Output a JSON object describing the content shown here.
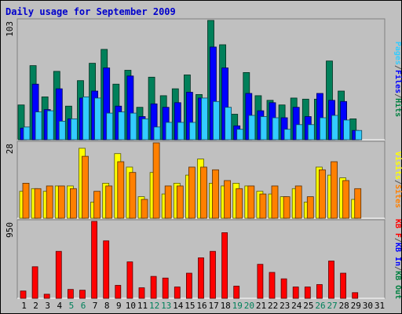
{
  "title": "Daily usage for September 2009",
  "chart_data": [
    {
      "type": "bar",
      "title": "Daily usage for September 2009",
      "max_label": "103",
      "ylim": [
        0,
        103
      ],
      "categories": [
        "1",
        "2",
        "3",
        "4",
        "5",
        "6",
        "7",
        "8",
        "9",
        "10",
        "11",
        "12",
        "13",
        "14",
        "15",
        "16",
        "17",
        "18",
        "19",
        "20",
        "21",
        "22",
        "23",
        "24",
        "25",
        "26",
        "27",
        "28",
        "29",
        "30",
        "31"
      ],
      "right_labels": [
        {
          "text": "Pages",
          "color": "#33ccff"
        },
        {
          "text": "/",
          "color": "#555555"
        },
        {
          "text": "Files",
          "color": "#0000ff"
        },
        {
          "text": "/",
          "color": "#555555"
        },
        {
          "text": "Hits",
          "color": "#008040"
        }
      ],
      "series": [
        {
          "name": "Hits",
          "color": "#00805a",
          "values": [
            30,
            64,
            37,
            59,
            29,
            51,
            66,
            78,
            48,
            60,
            28,
            54,
            38,
            44,
            56,
            39,
            103,
            82,
            22,
            58,
            38,
            34,
            30,
            36,
            35,
            35,
            68,
            42,
            18,
            0,
            0
          ]
        },
        {
          "name": "Files",
          "color": "#0000ff",
          "values": [
            10,
            48,
            26,
            44,
            18,
            36,
            42,
            62,
            29,
            55,
            20,
            31,
            28,
            32,
            41,
            36,
            80,
            62,
            12,
            40,
            25,
            32,
            19,
            28,
            20,
            40,
            34,
            33,
            8,
            0,
            0
          ]
        },
        {
          "name": "Pages",
          "color": "#33ccff",
          "values": [
            11,
            24,
            25,
            16,
            18,
            37,
            36,
            23,
            24,
            23,
            18,
            11,
            15,
            15,
            15,
            36,
            33,
            28,
            9,
            21,
            20,
            19,
            9,
            13,
            13,
            19,
            21,
            17,
            8,
            0,
            0
          ]
        }
      ]
    },
    {
      "type": "bar",
      "max_label": "28",
      "ylim": [
        0,
        28
      ],
      "categories": [
        "1",
        "2",
        "3",
        "4",
        "5",
        "6",
        "7",
        "8",
        "9",
        "10",
        "11",
        "12",
        "13",
        "14",
        "15",
        "16",
        "17",
        "18",
        "19",
        "20",
        "21",
        "22",
        "23",
        "24",
        "25",
        "26",
        "27",
        "28",
        "29",
        "30",
        "31"
      ],
      "right_labels": [
        {
          "text": "Visits",
          "color": "#ffff00"
        },
        {
          "text": "/",
          "color": "#555555"
        },
        {
          "text": "Sites",
          "color": "#ff8000"
        }
      ],
      "series": [
        {
          "name": "Visits",
          "color": "#ffff00",
          "values": [
            10,
            11,
            10,
            12,
            12,
            26,
            6,
            13,
            24,
            19,
            8,
            17,
            9,
            13,
            16,
            22,
            13,
            12,
            13,
            12,
            10,
            9,
            8,
            11,
            6,
            19,
            16,
            15,
            7,
            0,
            0
          ]
        },
        {
          "name": "Sites",
          "color": "#ff8000",
          "values": [
            13,
            11,
            12,
            12,
            11,
            23,
            10,
            12,
            21,
            17,
            7,
            28,
            12,
            12,
            19,
            19,
            18,
            14,
            11,
            12,
            9,
            12,
            8,
            12,
            8,
            18,
            21,
            14,
            11,
            0,
            0
          ]
        }
      ]
    },
    {
      "type": "bar",
      "max_label": "950",
      "ylim": [
        0,
        950
      ],
      "categories": [
        "1",
        "2",
        "3",
        "4",
        "5",
        "6",
        "7",
        "8",
        "9",
        "10",
        "11",
        "12",
        "13",
        "14",
        "15",
        "16",
        "17",
        "18",
        "19",
        "20",
        "21",
        "22",
        "23",
        "24",
        "25",
        "26",
        "27",
        "28",
        "29",
        "30",
        "31"
      ],
      "right_labels": [
        {
          "text": "KB F",
          "color": "#ff0000"
        },
        {
          "text": "/",
          "color": "#555555"
        },
        {
          "text": "KB In",
          "color": "#0000ff"
        },
        {
          "text": "/",
          "color": "#555555"
        },
        {
          "text": "KB Out",
          "color": "#008040"
        }
      ],
      "series": [
        {
          "name": "KB F",
          "color": "#ff0000",
          "values": [
            90,
            390,
            50,
            580,
            110,
            100,
            950,
            710,
            160,
            450,
            130,
            270,
            250,
            140,
            310,
            500,
            580,
            810,
            150,
            0,
            420,
            320,
            240,
            140,
            140,
            170,
            460,
            310,
            70,
            0,
            0
          ]
        }
      ]
    }
  ],
  "x_axis": {
    "labels": [
      "1",
      "2",
      "3",
      "4",
      "5",
      "6",
      "7",
      "8",
      "9",
      "10",
      "11",
      "12",
      "13",
      "14",
      "15",
      "16",
      "17",
      "18",
      "19",
      "20",
      "21",
      "22",
      "23",
      "24",
      "25",
      "26",
      "27",
      "28",
      "29",
      "30",
      "31"
    ],
    "weekend_color": "#00805a",
    "weekday_color": "#000000",
    "weekends": [
      5,
      6,
      12,
      13,
      19,
      20,
      26,
      27
    ]
  }
}
